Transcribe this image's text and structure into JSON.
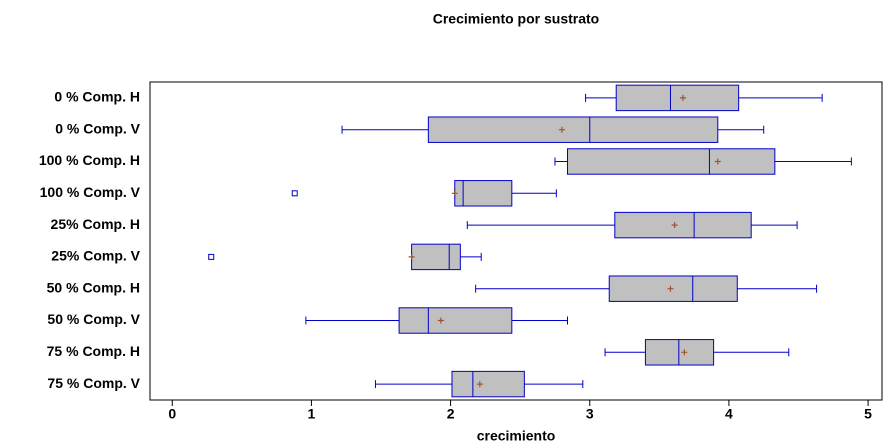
{
  "chart_data": {
    "type": "box",
    "title": "Crecimiento por sustrato",
    "x_label": "crecimiento",
    "categories": [
      "0 % Comp. H",
      "0 % Comp. V",
      "100 % Comp. H",
      "100 % Comp. V",
      "25% Comp. H",
      "25% Comp. V",
      "50 % Comp. H",
      "50 % Comp. V",
      "75 % Comp. H",
      "75 % Comp. V"
    ],
    "whisker_low": [
      2.97,
      1.22,
      2.75,
      2.03,
      2.12,
      1.72,
      2.18,
      0.96,
      3.11,
      1.46
    ],
    "q1": [
      3.19,
      1.84,
      2.84,
      2.03,
      3.18,
      1.72,
      3.14,
      1.63,
      3.4,
      2.01
    ],
    "median": [
      3.58,
      3.0,
      3.86,
      2.09,
      3.75,
      1.99,
      3.74,
      1.84,
      3.64,
      2.16
    ],
    "q3": [
      4.07,
      3.92,
      4.33,
      2.44,
      4.16,
      2.07,
      4.06,
      2.44,
      3.89,
      2.53
    ],
    "whisker_high": [
      4.67,
      4.25,
      4.88,
      2.76,
      4.49,
      2.22,
      4.63,
      2.84,
      4.43,
      2.95
    ],
    "mean": [
      3.67,
      2.8,
      3.92,
      2.03,
      3.61,
      1.72,
      3.58,
      1.93,
      3.68,
      2.21
    ],
    "outliers": [
      [],
      [],
      [],
      [
        0.88
      ],
      [],
      [
        0.28
      ],
      [],
      [],
      [],
      []
    ],
    "box_color": "#c0c0c0",
    "line_color": "#0000cc",
    "mean_color": "#a0522d",
    "xlim": [
      -0.16,
      5.1
    ],
    "xticks": [
      0,
      1,
      2,
      3,
      4,
      5
    ]
  }
}
